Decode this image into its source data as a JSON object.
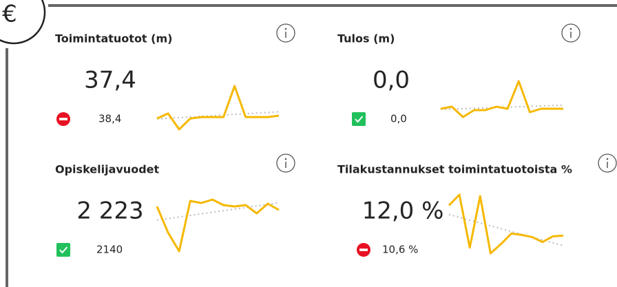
{
  "currency_icon": "€",
  "cards": [
    {
      "title": "Toimintatuotot (m)",
      "value": "37,4",
      "target": "38,4",
      "status": "bad",
      "sparkline": [
        28,
        35,
        13,
        28,
        30,
        30,
        30,
        73,
        30,
        30,
        30,
        32
      ]
    },
    {
      "title": "Tulos (m)",
      "value": "0,0",
      "target": "0,0",
      "status": "good",
      "sparkline": [
        42,
        45,
        30,
        40,
        40,
        45,
        42,
        82,
        37,
        42,
        42,
        42
      ]
    },
    {
      "title": "Opiskelijavuodet",
      "value": "2 223",
      "target": "2140",
      "status": "good",
      "sparkline": [
        100,
        62,
        35,
        108,
        105,
        110,
        102,
        100,
        102,
        90,
        104,
        95
      ]
    },
    {
      "title": "Tilakustannukset toimintatuotoista %",
      "value": "12,0 %",
      "target": "10,6 %",
      "status": "bad",
      "sparkline": [
        100,
        115,
        40,
        113,
        32,
        45,
        60,
        58,
        55,
        48,
        56,
        57
      ]
    }
  ],
  "sparkline_color": "#f5b800"
}
